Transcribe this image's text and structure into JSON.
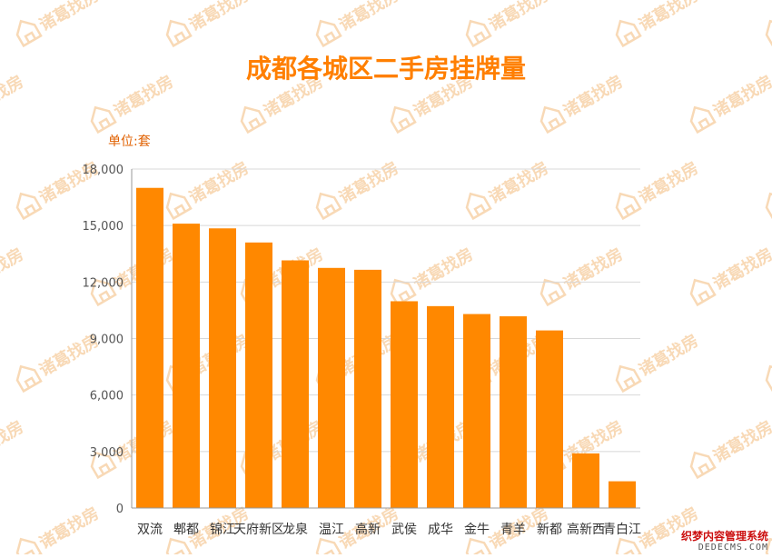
{
  "chart_data": {
    "type": "bar",
    "title": "成都各城区二手房挂牌量",
    "unit_label": "单位:套",
    "categories": [
      "双流",
      "郫都",
      "锦江",
      "天府新区",
      "龙泉",
      "温江",
      "高新",
      "武侯",
      "成华",
      "金牛",
      "青羊",
      "新都",
      "高新西",
      "青白江"
    ],
    "values": [
      17000,
      15100,
      14850,
      14100,
      13150,
      12750,
      12650,
      10980,
      10720,
      10300,
      10180,
      9430,
      2900,
      1420
    ],
    "yticks": [
      "0",
      "3,000",
      "6,000",
      "9,000",
      "12,000",
      "15,000",
      "18,000"
    ],
    "ylim": [
      0,
      18000
    ],
    "grid": true,
    "legend": "none",
    "bar_color": "#ff8800"
  },
  "watermark": {
    "brand": "诸葛找房"
  },
  "credit": {
    "line1": "织梦内容管理系统",
    "line2": "DEDECMS.COM"
  },
  "colors": {
    "title": "#ff7f00",
    "unit": "#e06000",
    "axis_text": "#555555",
    "grid": "#d8d8d8",
    "watermark": "#f8d9b6"
  }
}
